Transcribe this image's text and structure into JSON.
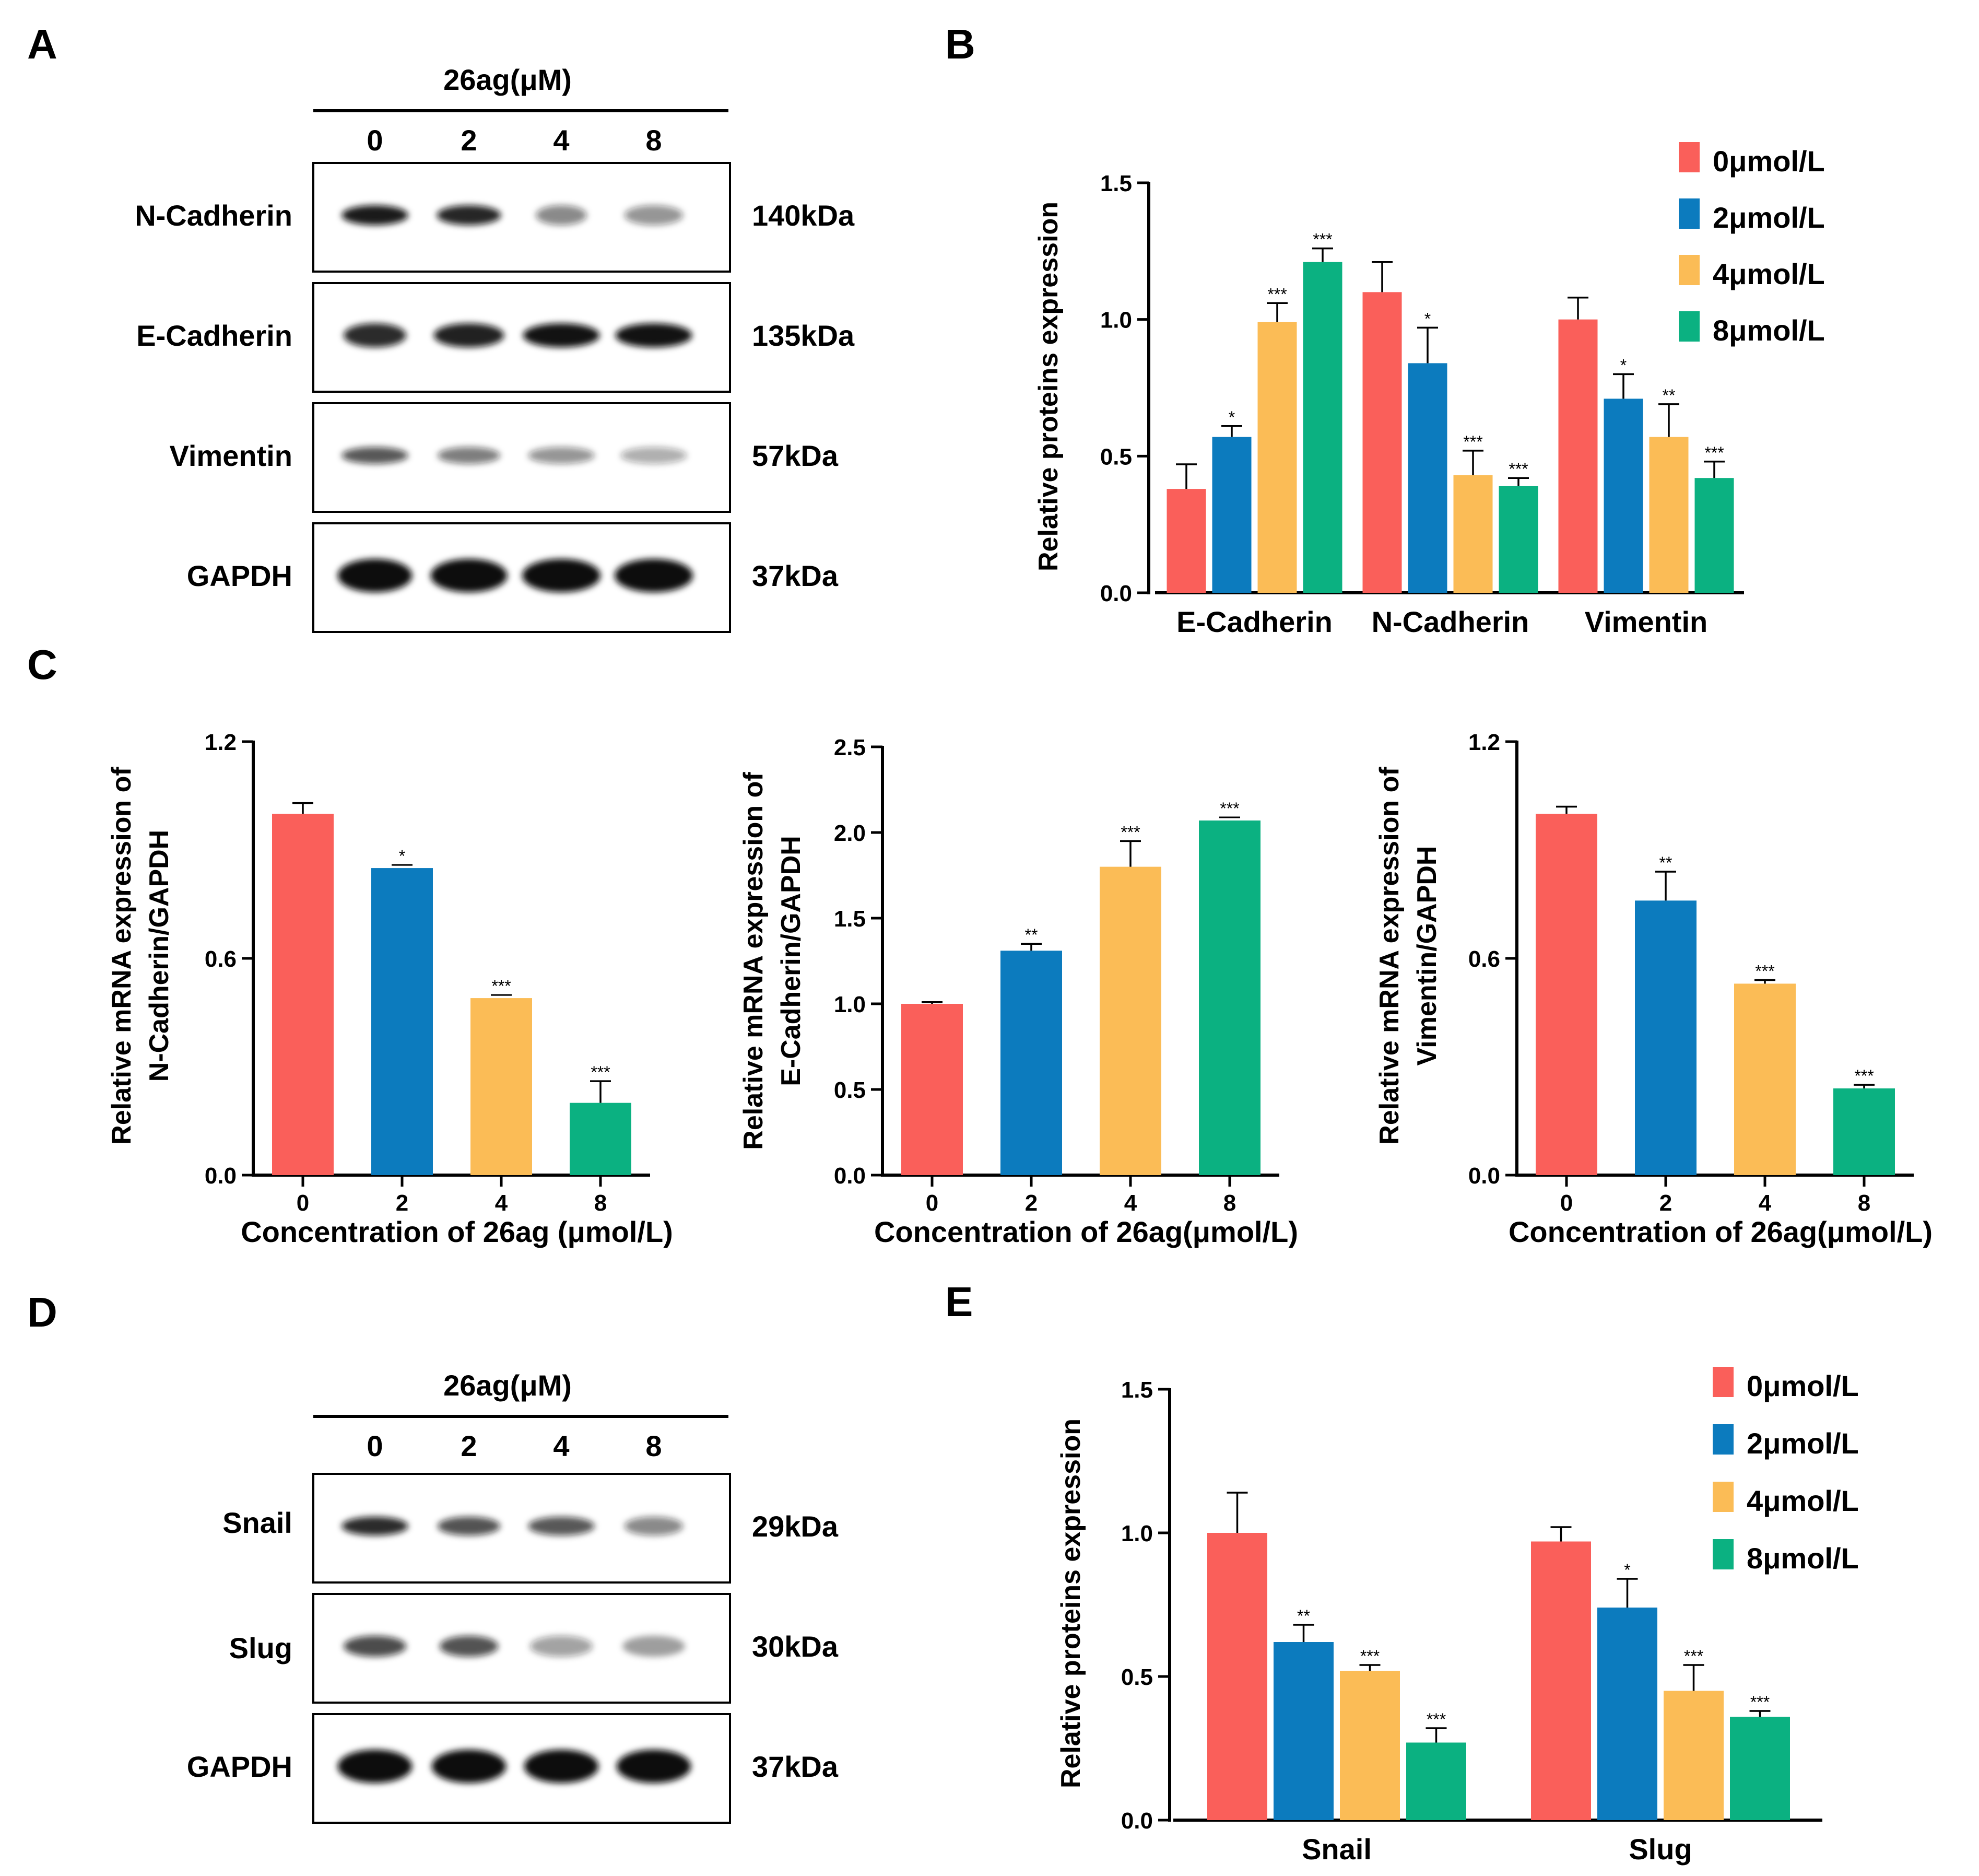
{
  "figure": {
    "panel_labels": [
      "A",
      "B",
      "C",
      "D",
      "E"
    ]
  },
  "blots": {
    "A": {
      "treatment": "26ag(μM)",
      "lanes": [
        "0",
        "2",
        "4",
        "8"
      ],
      "rows": [
        {
          "label": "N-Cadherin",
          "size": "140kDa",
          "band_intensity": [
            0.95,
            0.9,
            0.5,
            0.45
          ],
          "band_width": [
            0.85,
            0.82,
            0.65,
            0.75
          ]
        },
        {
          "label": "E-Cadherin",
          "size": "135kDa",
          "band_intensity": [
            0.88,
            0.92,
            0.98,
            0.98
          ],
          "band_width": [
            0.8,
            0.9,
            0.98,
            0.98
          ]
        },
        {
          "label": "Vimentin",
          "size": "57kDa",
          "band_intensity": [
            0.7,
            0.55,
            0.45,
            0.35
          ],
          "band_width": [
            0.85,
            0.8,
            0.85,
            0.85
          ]
        },
        {
          "label": "GAPDH",
          "size": "37kDa",
          "band_intensity": [
            1.0,
            1.0,
            1.0,
            1.0
          ],
          "band_width": [
            0.95,
            0.98,
            1.0,
            1.0
          ]
        }
      ]
    },
    "D": {
      "treatment": "26ag(μM)",
      "lanes": [
        "0",
        "2",
        "4",
        "8"
      ],
      "rows": [
        {
          "label": "Snail",
          "size": "29kDa",
          "band_intensity": [
            0.88,
            0.72,
            0.7,
            0.5
          ],
          "band_width": [
            0.85,
            0.8,
            0.85,
            0.75
          ]
        },
        {
          "label": "Slug",
          "size": "30kDa",
          "band_intensity": [
            0.75,
            0.72,
            0.4,
            0.38
          ],
          "band_width": [
            0.8,
            0.75,
            0.8,
            0.8
          ]
        },
        {
          "label": "GAPDH",
          "size": "37kDa",
          "band_intensity": [
            1.0,
            1.0,
            1.0,
            1.0
          ],
          "band_width": [
            0.95,
            0.95,
            0.95,
            0.95
          ]
        }
      ]
    }
  },
  "chart_data": [
    {
      "id": "B",
      "type": "bar",
      "ylabel": "Relative proteins expression",
      "ylim": [
        0,
        1.5
      ],
      "yticks": [
        "0.0",
        "0.5",
        "1.0",
        "1.5"
      ],
      "groups": [
        "E-Cadherin",
        "N-Cadherin",
        "Vimentin"
      ],
      "legend": [
        "0μmol/L",
        "2μmol/L",
        "4μmol/L",
        "8μmol/L"
      ],
      "legend_position": "top-right",
      "series": [
        {
          "name": "0μmol/L",
          "values": [
            0.38,
            1.1,
            1.0
          ],
          "errors": [
            0.09,
            0.11,
            0.08
          ],
          "sig": [
            "",
            "",
            ""
          ]
        },
        {
          "name": "2μmol/L",
          "values": [
            0.57,
            0.84,
            0.71
          ],
          "errors": [
            0.04,
            0.13,
            0.09
          ],
          "sig": [
            "*",
            "*",
            "*"
          ]
        },
        {
          "name": "4μmol/L",
          "values": [
            0.99,
            0.43,
            0.57
          ],
          "errors": [
            0.07,
            0.09,
            0.12
          ],
          "sig": [
            "***",
            "***",
            "**"
          ]
        },
        {
          "name": "8μmol/L",
          "values": [
            1.21,
            0.39,
            0.42
          ],
          "errors": [
            0.05,
            0.03,
            0.06
          ],
          "sig": [
            "***",
            "***",
            "***"
          ]
        }
      ]
    },
    {
      "id": "C1",
      "type": "bar",
      "xlabel": "Concentration of 26ag (μmol/L)",
      "ylabel": [
        "Relative mRNA expression of",
        "N-Cadherin/GAPDH"
      ],
      "ylim": [
        0,
        1.2
      ],
      "yticks": [
        "0.0",
        "0.6",
        "1.2"
      ],
      "categories": [
        "0",
        "2",
        "4",
        "8"
      ],
      "values": [
        1.0,
        0.85,
        0.49,
        0.2
      ],
      "errors": [
        0.03,
        0.0,
        0.0,
        0.06
      ],
      "sig": [
        "",
        "*",
        "***",
        "***"
      ]
    },
    {
      "id": "C2",
      "type": "bar",
      "xlabel": "Concentration of 26ag(μmol/L)",
      "ylabel": [
        "Relative mRNA expression of",
        "E-Cadherin/GAPDH"
      ],
      "ylim": [
        0,
        2.5
      ],
      "yticks": [
        "0.0",
        "0.5",
        "1.0",
        "1.5",
        "2.0",
        "2.5"
      ],
      "categories": [
        "0",
        "2",
        "4",
        "8"
      ],
      "values": [
        1.0,
        1.31,
        1.8,
        2.07
      ],
      "errors": [
        0.01,
        0.04,
        0.15,
        0.0
      ],
      "sig": [
        "",
        "**",
        "***",
        "***"
      ]
    },
    {
      "id": "C3",
      "type": "bar",
      "xlabel": "Concentration of 26ag(μmol/L)",
      "ylabel": [
        "Relative mRNA expression of",
        "Vimentin/GAPDH"
      ],
      "ylim": [
        0,
        1.2
      ],
      "yticks": [
        "0.0",
        "0.6",
        "1.2"
      ],
      "categories": [
        "0",
        "2",
        "4",
        "8"
      ],
      "values": [
        1.0,
        0.76,
        0.53,
        0.24
      ],
      "errors": [
        0.02,
        0.08,
        0.01,
        0.01
      ],
      "sig": [
        "",
        "**",
        "***",
        "***"
      ]
    },
    {
      "id": "E",
      "type": "bar",
      "ylabel": "Relative proteins expression",
      "ylim": [
        0,
        1.5
      ],
      "yticks": [
        "0.0",
        "0.5",
        "1.0",
        "1.5"
      ],
      "groups": [
        "Snail",
        "Slug"
      ],
      "legend": [
        "0μmol/L",
        "2μmol/L",
        "4μmol/L",
        "8μmol/L"
      ],
      "legend_position": "top-right",
      "series": [
        {
          "name": "0μmol/L",
          "values": [
            1.0,
            0.97
          ],
          "errors": [
            0.14,
            0.05
          ],
          "sig": [
            "",
            ""
          ]
        },
        {
          "name": "2μmol/L",
          "values": [
            0.62,
            0.74
          ],
          "errors": [
            0.06,
            0.1
          ],
          "sig": [
            "**",
            "*"
          ]
        },
        {
          "name": "4μmol/L",
          "values": [
            0.52,
            0.45
          ],
          "errors": [
            0.02,
            0.09
          ],
          "sig": [
            "***",
            "***"
          ]
        },
        {
          "name": "8μmol/L",
          "values": [
            0.27,
            0.36
          ],
          "errors": [
            0.05,
            0.02
          ],
          "sig": [
            "***",
            "***"
          ]
        }
      ]
    }
  ],
  "colors": {
    "c0": "#FA5F5A",
    "c2": "#0C7BBE",
    "c4": "#FBBC56",
    "c8": "#0BB181"
  }
}
